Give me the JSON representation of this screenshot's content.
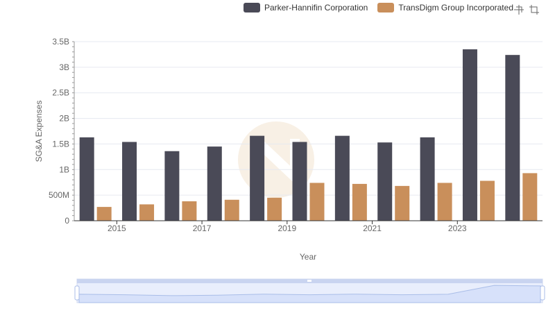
{
  "legend": {
    "series1": "Parker-Hannifin Corporation",
    "series2": "TransDigm Group Incorporated"
  },
  "toolbox": {
    "zoom_icon": "zoom-icon",
    "restore_icon": "restore-icon"
  },
  "colors": {
    "series1": "#4a4a57",
    "series2": "#c98f5b",
    "grid": "#e6e9f0",
    "slider_fill": "#dbe4fb"
  },
  "chart_data": {
    "type": "bar",
    "xlabel": "Year",
    "ylabel": "SG&A Expenses",
    "ylim": [
      0,
      3500000000
    ],
    "ytick_labels": [
      "0",
      "500M",
      "1B",
      "1.5B",
      "2B",
      "2.5B",
      "3B",
      "3.5B"
    ],
    "ytick_values": [
      0,
      500000000,
      1000000000,
      1500000000,
      2000000000,
      2500000000,
      3000000000,
      3500000000
    ],
    "categories": [
      "2014",
      "2015",
      "2016",
      "2017",
      "2018",
      "2019",
      "2020",
      "2021",
      "2022",
      "2023",
      "2024"
    ],
    "xtick_labels": [
      "2015",
      "2017",
      "2019",
      "2021",
      "2023"
    ],
    "series": [
      {
        "name": "Parker-Hannifin Corporation",
        "values": [
          1630000000,
          1540000000,
          1360000000,
          1450000000,
          1660000000,
          1540000000,
          1660000000,
          1530000000,
          1630000000,
          3350000000,
          3240000000
        ]
      },
      {
        "name": "TransDigm Group Incorporated",
        "values": [
          270000000,
          320000000,
          380000000,
          410000000,
          450000000,
          740000000,
          720000000,
          680000000,
          740000000,
          780000000,
          930000000
        ]
      }
    ]
  }
}
